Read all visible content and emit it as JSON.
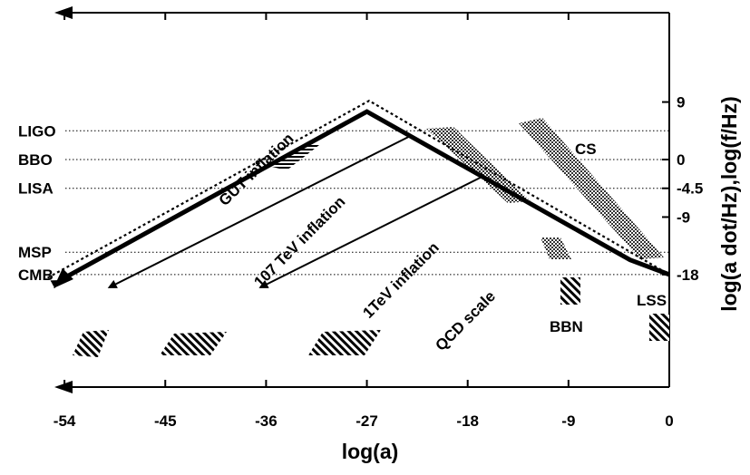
{
  "chart_data": {
    "type": "line",
    "xlabel": "log(a)",
    "ylabel": "log(a dot/Hz),log(f/Hz)",
    "xlim": [
      -57,
      0
    ],
    "ylim": [
      -21,
      13
    ],
    "x_ticks": [
      "-54",
      "-45",
      "-36",
      "-27",
      "-18",
      "-9",
      "0"
    ],
    "x_tick_values": [
      -54,
      -45,
      -36,
      -27,
      -18,
      -9,
      0
    ],
    "y_ticks": [
      "9",
      "0",
      "-4.5",
      "-9",
      "-18"
    ],
    "y_tick_values": [
      9,
      0,
      -4.5,
      -9,
      -18
    ],
    "band_labels": [
      "LIGO",
      "BBO",
      "LISA",
      "MSP",
      "CMB"
    ],
    "band_values": [
      4.5,
      0,
      -4.5,
      -14.5,
      -18
    ],
    "grid": "dotted horizontal lines at detector bands",
    "series": [
      {
        "style": "dotted",
        "x": [
          -55.5,
          -26.8,
          0
        ],
        "y": [
          -18.5,
          9.2,
          -18
        ]
      },
      {
        "style": "thick-solid",
        "x": [
          -54.5,
          -27,
          -3.5,
          0
        ],
        "y": [
          -19,
          7.5,
          -15.7,
          -18
        ]
      }
    ],
    "inflation_lines": [
      {
        "x": [
          -23,
          -50
        ],
        "y": [
          3.8,
          -20
        ]
      },
      {
        "x": [
          -16.5,
          -36.5
        ],
        "y": [
          -2.5,
          -20
        ]
      }
    ],
    "annotations": [
      {
        "text": "GUT  inflation"
      },
      {
        "text": "107 TeV  inflation"
      },
      {
        "text": "1TeV inflation"
      },
      {
        "text": "QCD scale"
      },
      {
        "text": "CS"
      },
      {
        "text": "BBN"
      },
      {
        "text": "LSS"
      }
    ]
  }
}
